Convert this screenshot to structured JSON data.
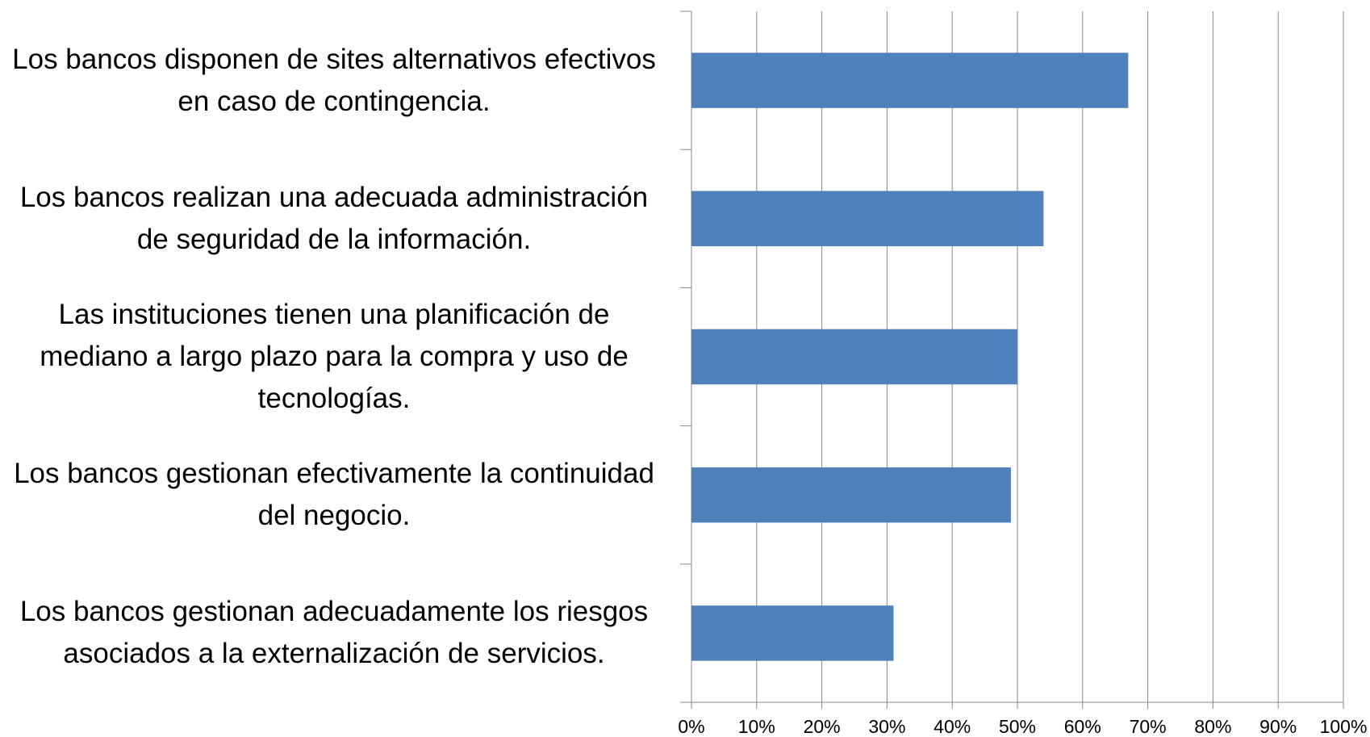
{
  "chart_data": {
    "type": "bar",
    "orientation": "horizontal",
    "categories": [
      "Los bancos disponen de sites alternativos efectivos en caso de contingencia.",
      "Los bancos realizan una adecuada administración de seguridad de la información.",
      "Las instituciones tienen una planificación de mediano a largo plazo para la compra y uso de tecnologías.",
      "Los bancos gestionan efectivamente la continuidad del negocio.",
      "Los bancos gestionan adecuadamente los riesgos asociados a la externalización de servicios."
    ],
    "values": [
      67,
      54,
      50,
      49,
      31
    ],
    "color": "#4f81bd",
    "xlim": [
      0,
      100
    ],
    "xticks": [
      {
        "value": 0,
        "label": "0%"
      },
      {
        "value": 10,
        "label": "10%"
      },
      {
        "value": 20,
        "label": "20%"
      },
      {
        "value": 30,
        "label": "30%"
      },
      {
        "value": 40,
        "label": "40%"
      },
      {
        "value": 50,
        "label": "50%"
      },
      {
        "value": 60,
        "label": "60%"
      },
      {
        "value": 70,
        "label": "70%"
      },
      {
        "value": 80,
        "label": "80%"
      },
      {
        "value": 90,
        "label": "90%"
      },
      {
        "value": 100,
        "label": "100%"
      }
    ],
    "grid": true
  }
}
